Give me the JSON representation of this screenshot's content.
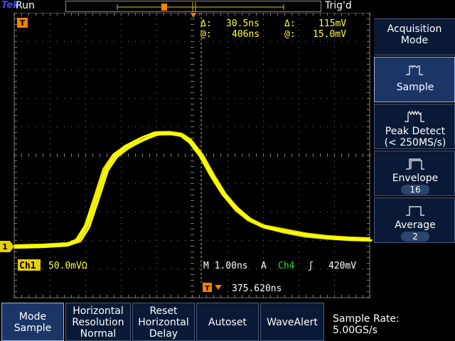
{
  "header": {
    "brand": "Tek",
    "run_status": "Run",
    "trigger_status": "Trig'd"
  },
  "markers": {
    "trigger_position": "T",
    "channel_ground": "1"
  },
  "cursor_readout": {
    "delta_time_label": "Δ:",
    "delta_time": "30.5ns",
    "delta_volt_label": "Δ:",
    "delta_volt": "115mV",
    "at_time_label": "@:",
    "at_time": "406ns",
    "at_volt_label": "@:",
    "at_volt": "15.0mV"
  },
  "channel_readout": {
    "channel": "Ch1",
    "scale": "50.0mVΩ"
  },
  "timebase_readout": {
    "main": "M 1.00ns",
    "trigger_mode": "A",
    "trigger_source": "Ch4",
    "trigger_slope": "ʃ",
    "trigger_level": "420mV"
  },
  "trigger_position_readout": {
    "value": "375.620ns"
  },
  "side_menu": {
    "title_line1": "Acquisition",
    "title_line2": "Mode",
    "items": [
      {
        "label": "Sample",
        "label2": "",
        "value": "",
        "icon": "sample-mode-icon",
        "active": true
      },
      {
        "label": "Peak Detect",
        "label2": "(< 250MS/s)",
        "value": "",
        "icon": "peak-detect-icon",
        "active": false
      },
      {
        "label": "Envelope",
        "label2": "",
        "value": "16",
        "icon": "envelope-icon",
        "active": false
      },
      {
        "label": "Average",
        "label2": "",
        "value": "2",
        "icon": "average-icon",
        "active": false
      }
    ]
  },
  "bottom_menu": {
    "mode_line1": "Mode",
    "mode_line2": "Sample",
    "hres_line1": "Horizontal",
    "hres_line2": "Resolution",
    "hres_line3": "Normal",
    "reset_line1": "Reset",
    "reset_line2": "Horizontal",
    "reset_line3": "Delay",
    "autoset": "Autoset",
    "wavealert": "WaveAlert",
    "sample_rate_label": "Sample Rate:",
    "sample_rate_value": "5.00GS/s"
  },
  "colors": {
    "trace": "#ffff00",
    "background": "#000000",
    "graticule": "#7a7a7a",
    "cursor": "#e6c200",
    "marker_orange": "#ff8000",
    "menu_bg": "#0a1a36"
  }
}
